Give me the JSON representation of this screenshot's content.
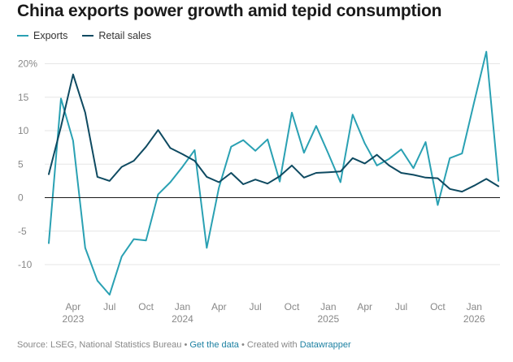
{
  "title": "China exports power growth amid tepid consumption",
  "footer": {
    "source": "Source: LSEG, National Statistics Bureau",
    "sep1": " • ",
    "get_data": "Get the data",
    "sep2": " • Created with ",
    "datawrapper": "Datawrapper"
  },
  "colors": {
    "exports": "#2aa1b3",
    "retail": "#0e4a61",
    "grid": "#e6e6e6",
    "zero": "#1a1a1a"
  },
  "chart_data": {
    "type": "line",
    "x": [
      "2023-02",
      "2023-03",
      "2023-04",
      "2023-05",
      "2023-06",
      "2023-07",
      "2023-08",
      "2023-09",
      "2023-10",
      "2023-11",
      "2023-12",
      "2024-01",
      "2024-02",
      "2024-03",
      "2024-04",
      "2024-05",
      "2024-06",
      "2024-07",
      "2024-08",
      "2024-09",
      "2024-10",
      "2024-11",
      "2024-12",
      "2025-01",
      "2025-02",
      "2025-03",
      "2025-04",
      "2025-05",
      "2025-06",
      "2025-07",
      "2025-08",
      "2025-09",
      "2025-10",
      "2025-11",
      "2025-12",
      "2026-01",
      "2026-02",
      "2026-03"
    ],
    "series": [
      {
        "name": "Exports",
        "color": "#2aa1b3",
        "values": [
          -6.8,
          14.8,
          8.5,
          -7.5,
          -12.4,
          -14.5,
          -8.8,
          -6.2,
          -6.4,
          0.5,
          2.3,
          4.6,
          7.1,
          -7.5,
          1.5,
          7.6,
          8.6,
          7.0,
          8.7,
          2.4,
          12.7,
          6.7,
          10.7,
          6.6,
          2.3,
          12.4,
          8.1,
          4.8,
          5.8,
          7.2,
          4.4,
          8.3,
          -1.1,
          5.9,
          6.6,
          14.3,
          21.8,
          2.5
        ]
      },
      {
        "name": "Retail sales",
        "color": "#0e4a61",
        "values": [
          3.5,
          10.6,
          18.4,
          12.7,
          3.1,
          2.5,
          4.6,
          5.5,
          7.6,
          10.1,
          7.4,
          6.5,
          5.5,
          3.1,
          2.3,
          3.7,
          2.0,
          2.7,
          2.1,
          3.2,
          4.8,
          3.0,
          3.7,
          3.8,
          3.9,
          5.9,
          5.1,
          6.4,
          4.8,
          3.7,
          3.4,
          3.0,
          2.9,
          1.3,
          0.9,
          1.8,
          2.8,
          1.7
        ]
      }
    ],
    "y_ticks": [
      "20%",
      "15",
      "10",
      "5",
      "0",
      "-5",
      "-10"
    ],
    "y_tick_values": [
      20,
      15,
      10,
      5,
      0,
      -5,
      -10
    ],
    "ylim": [
      -15,
      22
    ],
    "x_ticks": [
      {
        "label": "Apr",
        "year": "2023",
        "at": "2023-04"
      },
      {
        "label": "Jul",
        "year": "",
        "at": "2023-07"
      },
      {
        "label": "Oct",
        "year": "",
        "at": "2023-10"
      },
      {
        "label": "Jan",
        "year": "2024",
        "at": "2024-01"
      },
      {
        "label": "Apr",
        "year": "",
        "at": "2024-04"
      },
      {
        "label": "Jul",
        "year": "",
        "at": "2024-07"
      },
      {
        "label": "Oct",
        "year": "",
        "at": "2024-10"
      },
      {
        "label": "Jan",
        "year": "2025",
        "at": "2025-01"
      },
      {
        "label": "Apr",
        "year": "",
        "at": "2025-04"
      },
      {
        "label": "Jul",
        "year": "",
        "at": "2025-07"
      },
      {
        "label": "Oct",
        "year": "",
        "at": "2025-10"
      },
      {
        "label": "Jan",
        "year": "2026",
        "at": "2026-01"
      }
    ],
    "grid": true,
    "legend": "top-left"
  }
}
